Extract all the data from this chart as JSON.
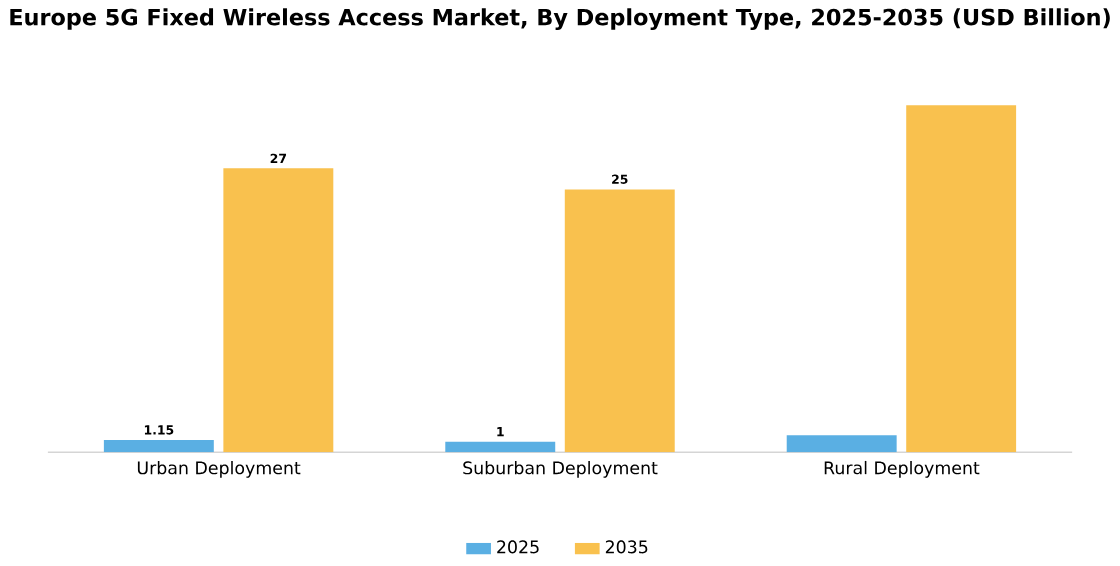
{
  "chart_data": {
    "type": "bar",
    "title": "Europe 5G Fixed Wireless Access Market, By Deployment Type, 2025-2035 (USD Billion)",
    "categories": [
      "Urban Deployment",
      "Suburban Deployment",
      "Rural Deployment"
    ],
    "series": [
      {
        "name": "2025",
        "color": "#5aafe3",
        "values": [
          1.15,
          1,
          1.6
        ],
        "value_labels": [
          "1.15",
          "1",
          null
        ]
      },
      {
        "name": "2035",
        "color": "#f9c14e",
        "values": [
          27,
          25,
          33
        ],
        "value_labels": [
          "27",
          "25",
          null
        ]
      }
    ],
    "legend": "bottom"
  }
}
